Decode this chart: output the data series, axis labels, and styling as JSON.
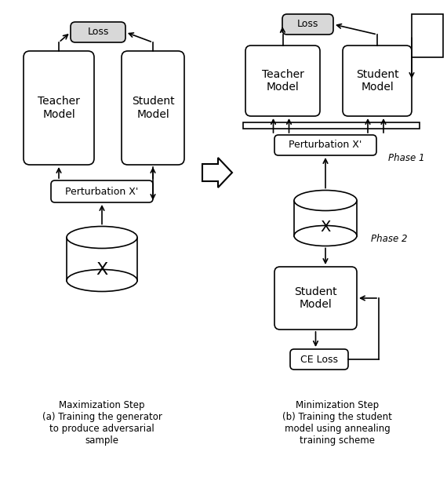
{
  "bg_color": "#ffffff",
  "fig_width": 5.7,
  "fig_height": 6.36,
  "caption_left": "Maximization Step\n(a) Training the generator\nto produce adversarial\nsample",
  "caption_right": "Minimization Step\n(b) Training the student\nmodel using annealing\ntraining scheme",
  "phase1_label": "Phase 1",
  "phase2_label": "Phase 2"
}
